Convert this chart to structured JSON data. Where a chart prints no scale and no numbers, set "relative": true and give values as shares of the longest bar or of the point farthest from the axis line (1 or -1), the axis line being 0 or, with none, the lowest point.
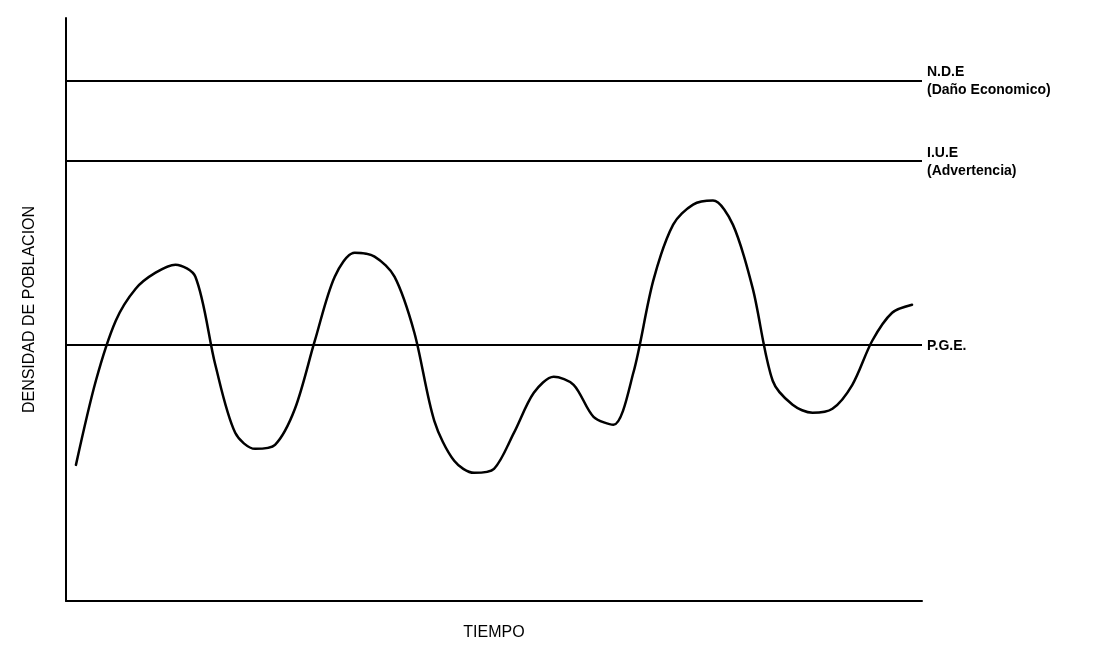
{
  "chart_data": {
    "type": "line",
    "relative": true,
    "xlabel": "TIEMPO",
    "ylabel": "DENSIDAD DE POBLACION",
    "categories": [
      null,
      null,
      null,
      null,
      null,
      null,
      null,
      null,
      null,
      null,
      null,
      null,
      null,
      null,
      null,
      null,
      null,
      null,
      null,
      null,
      null,
      null,
      null,
      null,
      null,
      null,
      null,
      null,
      null,
      null,
      null,
      null,
      null,
      null,
      null,
      null,
      null,
      null,
      null,
      null,
      null,
      null,
      null
    ],
    "series": [
      {
        "color": "#000000",
        "values": [
          0.34,
          0.55,
          0.7,
          0.78,
          0.82,
          0.84,
          0.81,
          0.59,
          0.42,
          0.38,
          0.39,
          0.48,
          0.65,
          0.81,
          0.87,
          0.86,
          0.81,
          0.67,
          0.45,
          0.35,
          0.32,
          0.33,
          0.42,
          0.52,
          0.56,
          0.54,
          0.46,
          0.44,
          0.57,
          0.8,
          0.94,
          0.99,
          1.0,
          0.94,
          0.78,
          0.55,
          0.49,
          0.47,
          0.48,
          0.54,
          0.65,
          0.72,
          0.74
        ]
      }
    ],
    "ref_lines": [
      {
        "axis": "y",
        "value": 1.3,
        "label": "N.D.E\n(Daño Economico)",
        "color": "#000000"
      },
      {
        "axis": "y",
        "value": 1.1,
        "label": "I.U.E\n(Advertencia)",
        "color": "#000000"
      },
      {
        "axis": "y",
        "value": 0.64,
        "label": "P.G.E.",
        "color": "#000000"
      }
    ],
    "grid": false,
    "marker": "none",
    "line_style": "solid"
  }
}
